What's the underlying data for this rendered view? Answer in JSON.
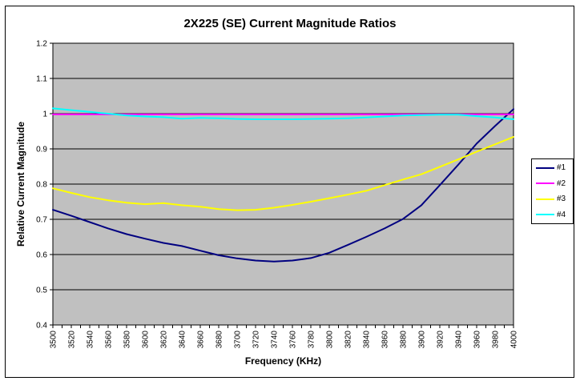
{
  "title": "2X225 (SE) Current Magnitude Ratios",
  "chart_data": {
    "type": "line",
    "title": "2X225 (SE) Current Magnitude Ratios",
    "xlabel": "Frequency (KHz)",
    "ylabel": "Relative Current Magnitude",
    "xlim": [
      3500,
      4000
    ],
    "ylim": [
      0.4,
      1.2
    ],
    "grid": true,
    "legend_position": "right",
    "plot_bg": "#C0C0C0",
    "axis_color": "#000000",
    "x_minor_tick_step": 10,
    "y_ticks": [
      0.4,
      0.5,
      0.6,
      0.7,
      0.8,
      0.9,
      1.0,
      1.1,
      1.2
    ],
    "y_tick_labels": [
      "0.4",
      "0.5",
      "0.6",
      "0.7",
      "0.8",
      "0.9",
      "1",
      "1.1",
      "1.2"
    ],
    "x": [
      3500,
      3520,
      3540,
      3560,
      3580,
      3600,
      3620,
      3640,
      3660,
      3680,
      3700,
      3720,
      3740,
      3760,
      3780,
      3800,
      3820,
      3840,
      3860,
      3880,
      3900,
      3920,
      3940,
      3960,
      3980,
      4000
    ],
    "series": [
      {
        "name": "#1",
        "color": "#000080",
        "values": [
          0.727,
          0.71,
          0.692,
          0.674,
          0.658,
          0.645,
          0.633,
          0.624,
          0.611,
          0.598,
          0.589,
          0.583,
          0.58,
          0.583,
          0.59,
          0.605,
          0.627,
          0.65,
          0.674,
          0.701,
          0.74,
          0.797,
          0.855,
          0.915,
          0.965,
          1.013
        ]
      },
      {
        "name": "#2",
        "color": "#FF00FF",
        "values": [
          0.998,
          0.998,
          0.998,
          0.998,
          0.998,
          0.998,
          0.998,
          0.998,
          0.998,
          0.998,
          0.998,
          0.998,
          0.998,
          0.998,
          0.998,
          0.998,
          0.998,
          0.998,
          0.998,
          0.998,
          0.998,
          0.998,
          0.998,
          0.998,
          0.998,
          0.998
        ]
      },
      {
        "name": "#3",
        "color": "#FFFF00",
        "values": [
          0.788,
          0.775,
          0.763,
          0.754,
          0.747,
          0.743,
          0.746,
          0.74,
          0.736,
          0.729,
          0.726,
          0.727,
          0.733,
          0.741,
          0.75,
          0.76,
          0.77,
          0.781,
          0.797,
          0.813,
          0.828,
          0.849,
          0.87,
          0.892,
          0.913,
          0.934
        ]
      },
      {
        "name": "#4",
        "color": "#00FFFF",
        "values": [
          1.015,
          1.01,
          1.005,
          1.0,
          0.995,
          0.992,
          0.99,
          0.986,
          0.988,
          0.987,
          0.985,
          0.984,
          0.984,
          0.984,
          0.985,
          0.986,
          0.987,
          0.989,
          0.992,
          0.995,
          0.996,
          0.997,
          0.997,
          0.993,
          0.989,
          0.984
        ]
      }
    ]
  }
}
